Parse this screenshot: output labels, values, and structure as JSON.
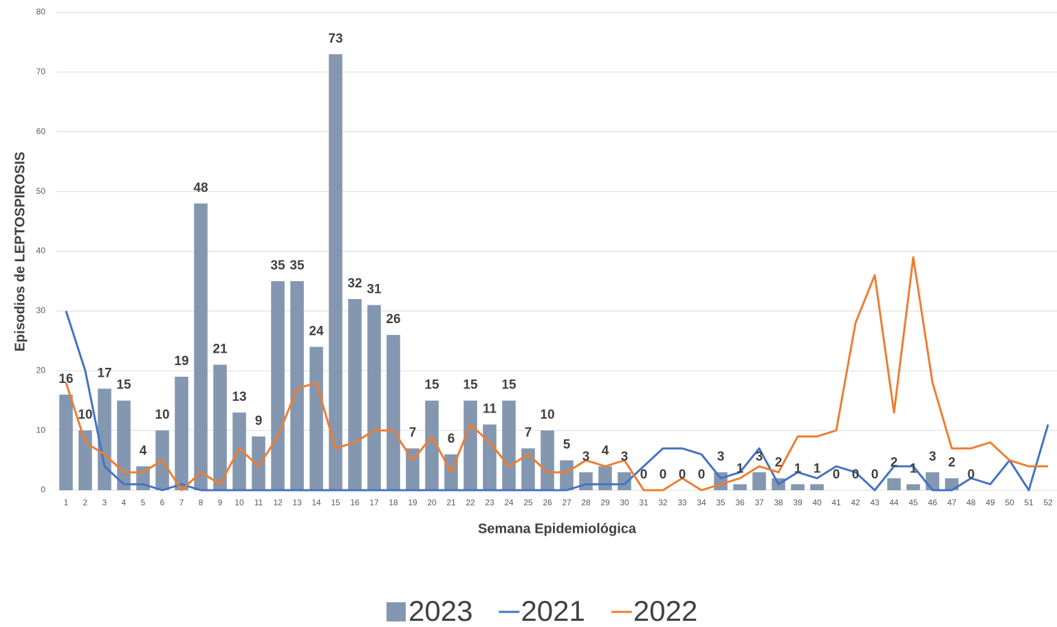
{
  "chart_data": {
    "type": "bar",
    "x_label": "Semana Epidemiológica",
    "y_label": "Episodios de LEPTOSPIROSIS",
    "categories": [
      "1",
      "2",
      "3",
      "4",
      "5",
      "6",
      "7",
      "8",
      "9",
      "10",
      "11",
      "12",
      "13",
      "14",
      "15",
      "16",
      "17",
      "18",
      "19",
      "20",
      "21",
      "22",
      "23",
      "24",
      "25",
      "26",
      "27",
      "28",
      "29",
      "30",
      "31",
      "32",
      "33",
      "34",
      "35",
      "36",
      "37",
      "38",
      "39",
      "40",
      "41",
      "42",
      "43",
      "44",
      "45",
      "46",
      "47",
      "48",
      "49",
      "50",
      "51",
      "52"
    ],
    "series": [
      {
        "name": "2023",
        "type": "bar",
        "color": "#8497b0",
        "values": [
          16,
          10,
          17,
          15,
          4,
          10,
          19,
          48,
          21,
          13,
          9,
          35,
          35,
          24,
          73,
          32,
          31,
          26,
          7,
          15,
          6,
          15,
          11,
          15,
          7,
          10,
          5,
          3,
          4,
          3,
          0,
          0,
          0,
          0,
          3,
          1,
          3,
          2,
          1,
          1,
          0,
          0,
          0,
          2,
          1,
          3,
          2,
          0,
          null,
          null,
          null,
          null
        ]
      },
      {
        "name": "2021",
        "type": "line",
        "color": "#4472c4",
        "values": [
          30,
          20,
          4,
          1,
          1,
          0,
          1,
          0,
          0,
          0,
          0,
          0,
          0,
          0,
          0,
          0,
          0,
          0,
          0,
          0,
          0,
          0,
          0,
          0,
          0,
          0,
          0,
          1,
          1,
          1,
          4,
          7,
          7,
          6,
          2,
          3,
          7,
          1,
          3,
          2,
          4,
          3,
          0,
          4,
          4,
          0,
          0,
          2,
          1,
          5,
          0,
          11
        ]
      },
      {
        "name": "2022",
        "type": "line",
        "color": "#ed7d31",
        "values": [
          18,
          8,
          6,
          3,
          3,
          5,
          0,
          3,
          1,
          7,
          4,
          9,
          17,
          18,
          7,
          8,
          10,
          10,
          5,
          9,
          3,
          11,
          8,
          4,
          6,
          3,
          3,
          5,
          4,
          5,
          0,
          0,
          2,
          0,
          1,
          2,
          4,
          3,
          9,
          9,
          10,
          28,
          36,
          13,
          39,
          18,
          7,
          7,
          8,
          5,
          4,
          4
        ]
      }
    ],
    "ylim": [
      0,
      80
    ],
    "yticks": [
      0,
      10,
      20,
      30,
      40,
      50,
      60,
      70,
      80
    ],
    "grid": true
  }
}
